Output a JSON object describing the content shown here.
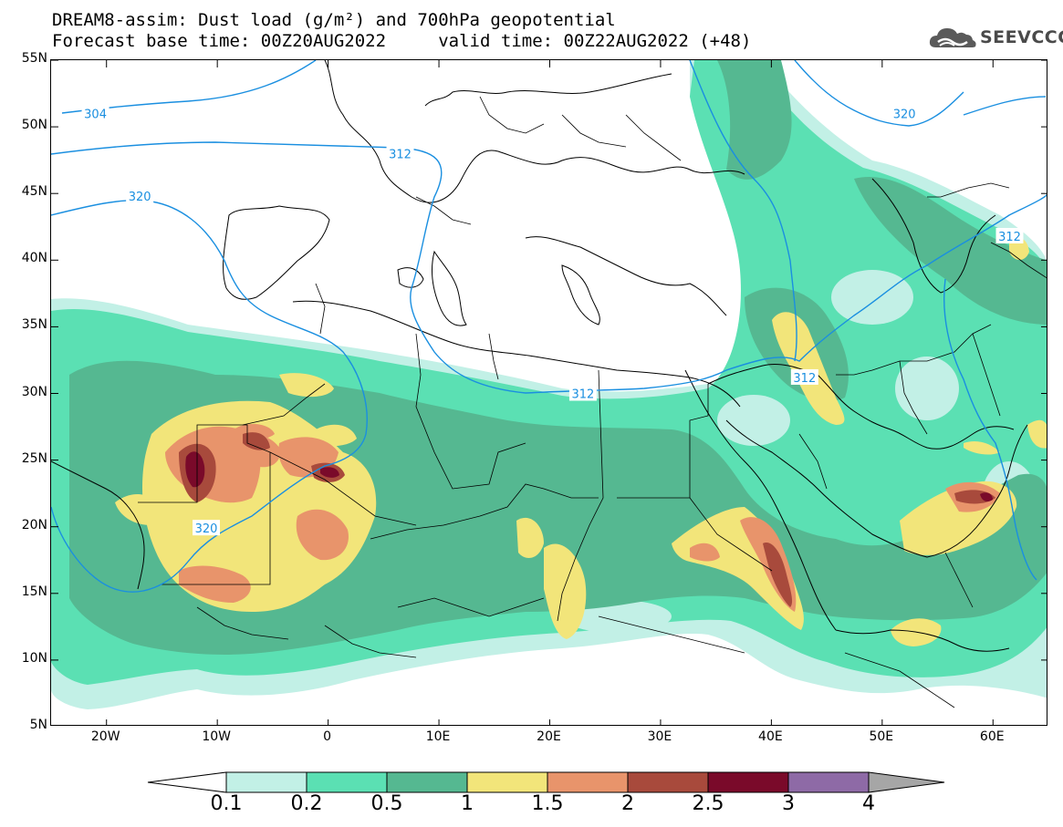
{
  "header": {
    "title_line_1": "DREAM8-assim: Dust load (g/m²) and 700hPa geopotential",
    "title_line_2": "Forecast base time: 00Z20AUG2022     valid time: 00Z22AUG2022 (+48)"
  },
  "logo": {
    "text": "SEEVCCC",
    "icon": "cloud-logo-icon",
    "color": "#4a4a4a"
  },
  "map": {
    "latitude_ticks": [
      "55N",
      "50N",
      "45N",
      "40N",
      "35N",
      "30N",
      "25N",
      "20N",
      "15N",
      "10N",
      "5N"
    ],
    "latitude_values": [
      55,
      50,
      45,
      40,
      35,
      30,
      25,
      20,
      15,
      10,
      5
    ],
    "longitude_ticks": [
      "20W",
      "10W",
      "0",
      "10E",
      "20E",
      "30E",
      "40E",
      "50E",
      "60E"
    ],
    "longitude_values": [
      -20,
      -10,
      0,
      10,
      20,
      30,
      40,
      50,
      60
    ],
    "lon_range": [
      -25,
      65
    ],
    "lat_range": [
      5,
      55
    ],
    "contour_color": "#1a8fe0",
    "contour_labels": [
      {
        "text": "304",
        "lon": -21,
        "lat": 51.0
      },
      {
        "text": "312",
        "lon": 6.5,
        "lat": 48.0
      },
      {
        "text": "320",
        "lon": -17,
        "lat": 44.8
      },
      {
        "text": "320",
        "lon": 52,
        "lat": 51.0
      },
      {
        "text": "312",
        "lon": 61.5,
        "lat": 41.8
      },
      {
        "text": "312",
        "lon": 43,
        "lat": 31.2
      },
      {
        "text": "312",
        "lon": 23,
        "lat": 30.0
      },
      {
        "text": "320",
        "lon": -11,
        "lat": 19.9
      }
    ]
  },
  "legend": {
    "labels": [
      "0.1",
      "0.2",
      "0.5",
      "1",
      "1.5",
      "2",
      "2.5",
      "3",
      "4"
    ],
    "colors": [
      "#ffffff",
      "#c2f0e6",
      "#5be0b3",
      "#55b891",
      "#f2e57a",
      "#e8946b",
      "#a84a3c",
      "#7a0a2a",
      "#8e6aa6",
      "#a6a6a6"
    ]
  }
}
